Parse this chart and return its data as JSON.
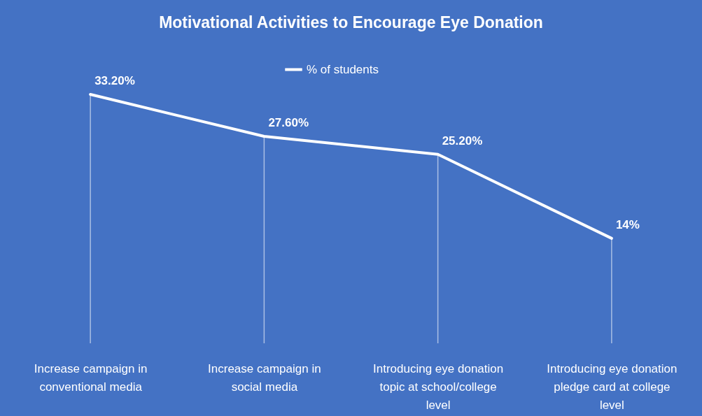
{
  "chart_data": {
    "type": "line",
    "title": "Motivational Activities to Encourage Eye Donation",
    "categories": [
      "Increase campaign in conventional media",
      "Increase campaign in social media",
      "Introducing eye donation topic at school/college level",
      "Introducing eye donation pledge card at college level"
    ],
    "series": [
      {
        "name": "% of students",
        "color": "#ffffff",
        "values": [
          33.2,
          27.6,
          25.2,
          14
        ],
        "value_labels": [
          "33.20%",
          "27.60%",
          "25.20%",
          "14%"
        ]
      }
    ],
    "legend": "top",
    "grid": "x",
    "marker": "none"
  }
}
